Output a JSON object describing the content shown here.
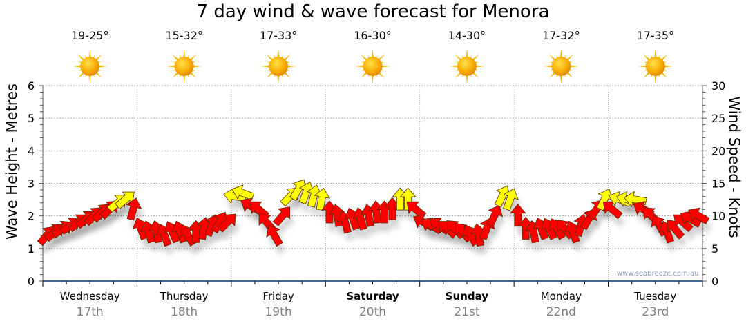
{
  "title": "7 day wind & wave forecast for Menora",
  "watermark": "www.seabreeze.com.au",
  "days": [
    {
      "name": "Wednesday",
      "date": "17th",
      "temp": "19-25°",
      "icon": "sun-icon",
      "bold": false
    },
    {
      "name": "Thursday",
      "date": "18th",
      "temp": "15-32°",
      "icon": "sun-icon",
      "bold": false
    },
    {
      "name": "Friday",
      "date": "19th",
      "temp": "17-33°",
      "icon": "sun-icon",
      "bold": false
    },
    {
      "name": "Saturday",
      "date": "20th",
      "temp": "16-30°",
      "icon": "sun-icon",
      "bold": true
    },
    {
      "name": "Sunday",
      "date": "21st",
      "temp": "14-30°",
      "icon": "sun-icon",
      "bold": true
    },
    {
      "name": "Monday",
      "date": "22nd",
      "temp": "17-32°",
      "icon": "sun-icon",
      "bold": false
    },
    {
      "name": "Tuesday",
      "date": "23rd",
      "temp": "17-35°",
      "icon": "sun-icon",
      "bold": false
    }
  ],
  "chart_data": {
    "type": "scatter",
    "title": "7 day wind & wave forecast for Menora",
    "ylabel_left": "Wave Height - Metres",
    "ylabel_right": "Wind Speed - Knots",
    "ylim_left": [
      0,
      6
    ],
    "ylim_right": [
      0,
      30
    ],
    "yticks_left": [
      "0",
      "1",
      "2",
      "3",
      "4",
      "5",
      "6"
    ],
    "yticks_right": [
      "0",
      "5",
      "10",
      "15",
      "20",
      "25",
      "30"
    ],
    "grid": true,
    "samples_per_day": 12,
    "yellow_threshold_knots": 12,
    "colors": {
      "low": "#ff0000",
      "high": "#ffff00",
      "outline": "#5a2a00",
      "axis": "#003366"
    },
    "wind_speed_knots": [
      7,
      7.5,
      8,
      8.5,
      9,
      9.5,
      10,
      10.5,
      11,
      12,
      12.5,
      11,
      8,
      7.5,
      7.5,
      7,
      7.5,
      7.5,
      7,
      7.5,
      8,
      8.5,
      9,
      9,
      13,
      13.5,
      11.5,
      11,
      9,
      7,
      10,
      13,
      14,
      13.5,
      13,
      12.5,
      10.5,
      10,
      9,
      9.5,
      9.5,
      10,
      10.5,
      10.5,
      11,
      12.5,
      12.5,
      11,
      9,
      8.5,
      8.5,
      8,
      8,
      7.5,
      7,
      7,
      8,
      10,
      13,
      12.5,
      10,
      8,
      7.5,
      8,
      8,
      8,
      8,
      7.5,
      8.5,
      9.5,
      11,
      12.5,
      11,
      12.5,
      12.5,
      12.5,
      11,
      10,
      8.5,
      7.5,
      8,
      9,
      9.5,
      10
    ],
    "wind_direction_deg": [
      40,
      50,
      55,
      55,
      50,
      50,
      45,
      45,
      45,
      50,
      50,
      15,
      -20,
      -15,
      -10,
      -20,
      -25,
      -20,
      -30,
      0,
      10,
      20,
      30,
      45,
      280,
      290,
      300,
      310,
      320,
      330,
      40,
      45,
      30,
      20,
      15,
      10,
      0,
      -10,
      -15,
      -20,
      -15,
      -10,
      -5,
      0,
      0,
      0,
      0,
      -50,
      -60,
      -60,
      -55,
      -50,
      -45,
      -40,
      -30,
      -10,
      20,
      25,
      25,
      20,
      0,
      0,
      -10,
      -20,
      -25,
      -30,
      -40,
      -20,
      15,
      30,
      35,
      25,
      -50,
      -70,
      -75,
      -80,
      -60,
      -45,
      -30,
      -20,
      -40,
      -50,
      -60,
      -60
    ]
  }
}
